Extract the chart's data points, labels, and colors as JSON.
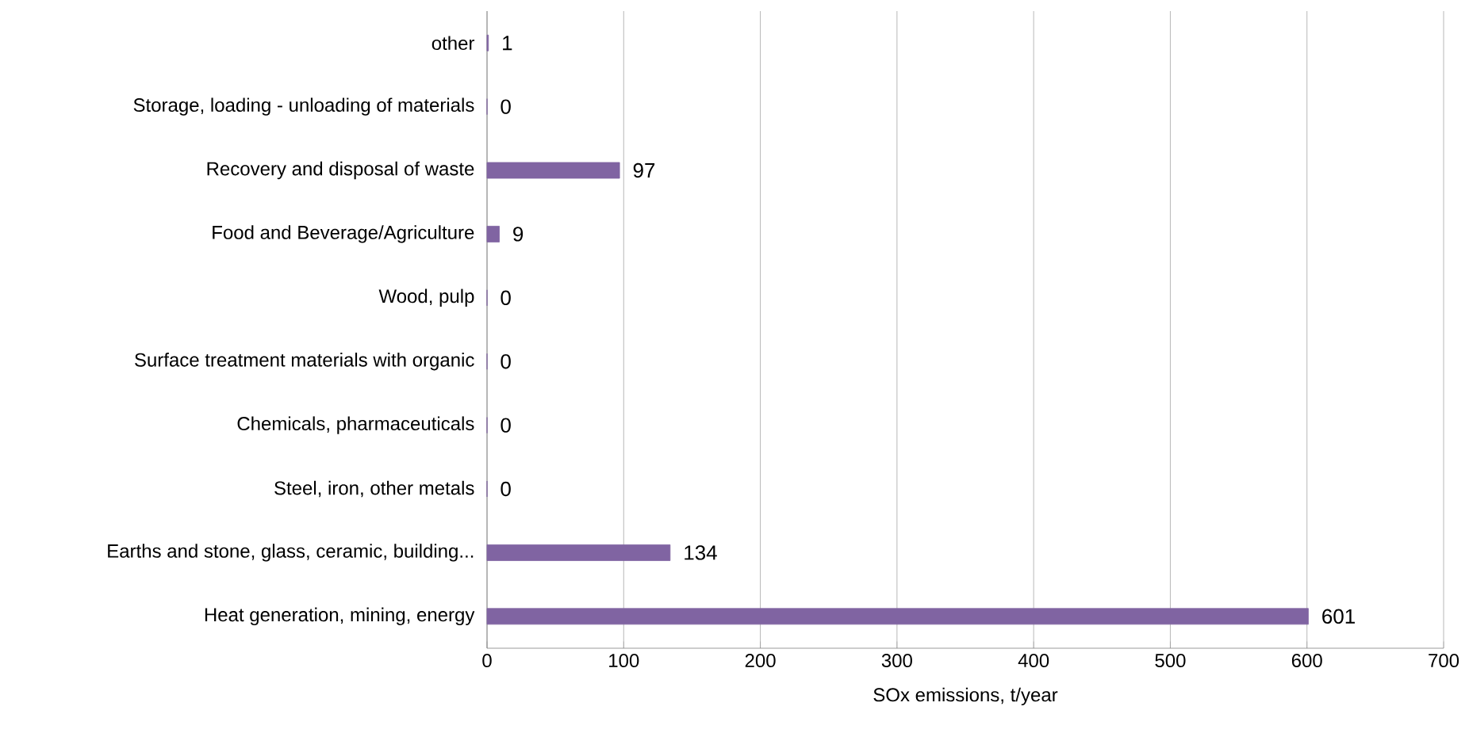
{
  "chart_data": {
    "type": "bar",
    "orientation": "horizontal",
    "categories": [
      "other",
      "Storage, loading - unloading of materials",
      "Recovery and disposal of waste",
      "Food and Beverage/Agriculture",
      "Wood, pulp",
      "Surface treatment materials with organic",
      "Chemicals, pharmaceuticals",
      "Steel, iron, other metals",
      "Earths and stone, glass, ceramic, building...",
      "Heat generation, mining, energy"
    ],
    "values": [
      1,
      0,
      97,
      9,
      0,
      0,
      0,
      0,
      134,
      601
    ],
    "color": "#8064a2",
    "xlabel": "SOx emissions, t/year",
    "xlim": [
      0,
      700
    ],
    "xticks": [
      0,
      100,
      200,
      300,
      400,
      500,
      600,
      700
    ],
    "grid": "x",
    "data_labels": true
  }
}
